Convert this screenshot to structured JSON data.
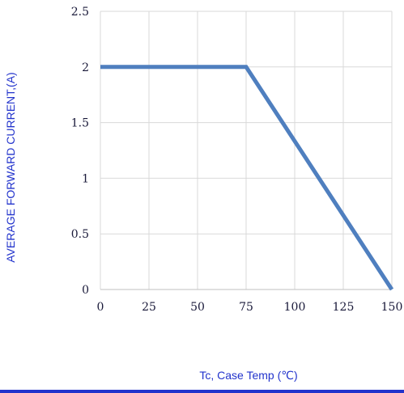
{
  "chart_data": {
    "type": "line",
    "xlabel": "Tc, Case Temp (℃)",
    "ylabel": "AVERAGE FORWARD CURRENT,(A)",
    "xlim": [
      0,
      150
    ],
    "ylim": [
      0,
      2.5
    ],
    "x_ticks": [
      "0",
      "25",
      "50",
      "75",
      "100",
      "125",
      "150"
    ],
    "y_ticks": [
      "0",
      "0.5",
      "1",
      "1.5",
      "2",
      "2.5"
    ],
    "x_tick_values": [
      0,
      25,
      50,
      75,
      100,
      125,
      150
    ],
    "y_tick_values": [
      0,
      0.5,
      1,
      1.5,
      2,
      2.5
    ],
    "grid": true,
    "series": [
      {
        "x": [
          0,
          75,
          150
        ],
        "y": [
          2,
          2,
          0
        ],
        "color": "#4f7fbf"
      }
    ]
  },
  "colors": {
    "axis_title": "#2233cc",
    "bottom_rule": "#2233cc",
    "grid": "#d9d9d9"
  }
}
